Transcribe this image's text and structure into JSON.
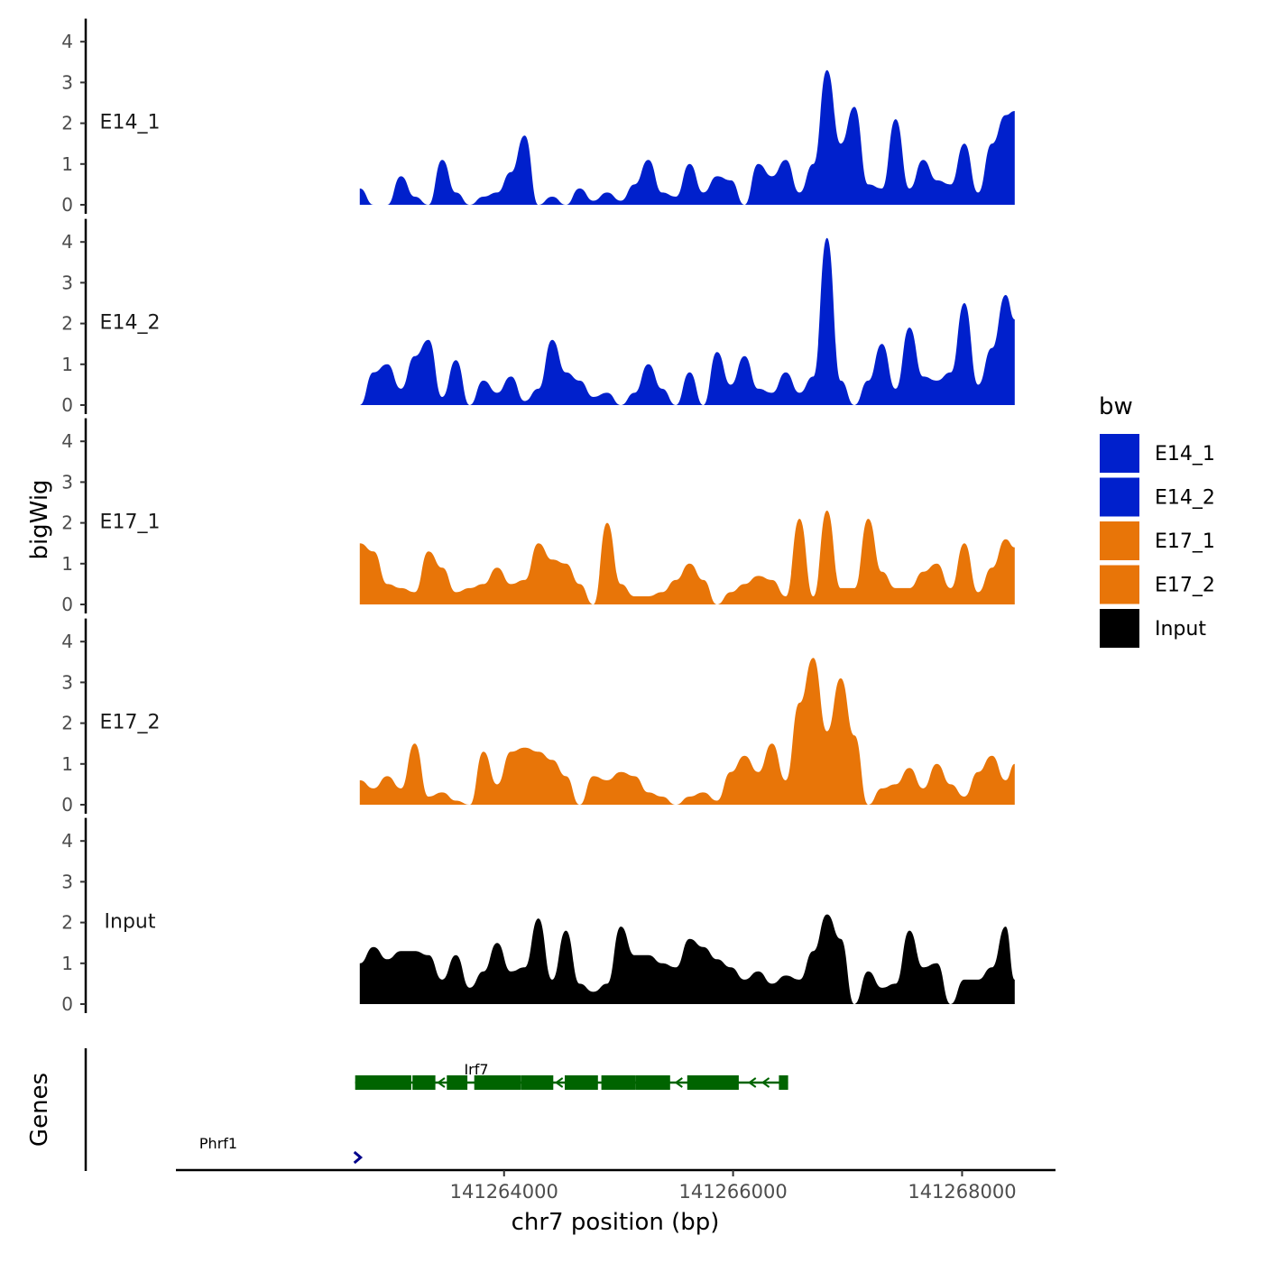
{
  "chart_data": {
    "type": "area",
    "title": "",
    "ylabel": "bigWig",
    "xlabel": "chr7 position (bp)",
    "genes_label": "Genes",
    "chromosome": "chr7",
    "xlim": [
      141261150,
      141268800
    ],
    "x_ticks": [
      141264000,
      141266000,
      141268000
    ],
    "x_tick_labels": [
      "141264000",
      "141266000",
      "141268000"
    ],
    "ylim": [
      0,
      4.3
    ],
    "y_ticks": [
      0,
      1,
      2,
      3,
      4
    ],
    "y_tick_labels": [
      "0",
      "1",
      "2",
      "3",
      "4"
    ],
    "legend": {
      "title": "bw",
      "position": "right",
      "entries": [
        {
          "label": "E14_1",
          "color": "#0020CC"
        },
        {
          "label": "E14_2",
          "color": "#0020CC"
        },
        {
          "label": "E17_1",
          "color": "#E87508"
        },
        {
          "label": "E17_2",
          "color": "#E87508"
        },
        {
          "label": "Input",
          "color": "#000000"
        }
      ]
    },
    "x": [
      141262740,
      141262860,
      141262980,
      141263100,
      141263220,
      141263340,
      141263460,
      141263580,
      141263700,
      141263820,
      141263940,
      141264060,
      141264180,
      141264300,
      141264420,
      141264540,
      141264660,
      141264780,
      141264900,
      141265020,
      141265140,
      141265260,
      141265380,
      141265500,
      141265620,
      141265740,
      141265860,
      141265980,
      141266100,
      141266220,
      141266340,
      141266460,
      141266580,
      141266700,
      141266820,
      141266940,
      141267060,
      141267180,
      141267300,
      141267420,
      141267540,
      141267660,
      141267780,
      141267900,
      141268020,
      141268140,
      141268260,
      141268380,
      141268460
    ],
    "series": [
      {
        "name": "E14_1",
        "color": "#0020CC",
        "values": [
          0.4,
          0,
          0,
          0.7,
          0.2,
          0,
          1.1,
          0.3,
          0,
          0.2,
          0.3,
          0.8,
          1.7,
          0,
          0.2,
          0,
          0.4,
          0.1,
          0.3,
          0.1,
          0.5,
          1.1,
          0.3,
          0.2,
          1.0,
          0.3,
          0.7,
          0.6,
          0,
          1.0,
          0.7,
          1.1,
          0.3,
          1.0,
          3.3,
          1.5,
          2.4,
          0.5,
          0.4,
          2.1,
          0.4,
          1.1,
          0.6,
          0.5,
          1.5,
          0.3,
          1.5,
          2.2,
          2.3
        ]
      },
      {
        "name": "E14_2",
        "color": "#0020CC",
        "values": [
          0,
          0.8,
          1.0,
          0.4,
          1.2,
          1.6,
          0.2,
          1.1,
          0,
          0.6,
          0.3,
          0.7,
          0.1,
          0.4,
          1.6,
          0.8,
          0.6,
          0.2,
          0.3,
          0,
          0.3,
          1.0,
          0.4,
          0,
          0.8,
          0,
          1.3,
          0.5,
          1.2,
          0.4,
          0.3,
          0.8,
          0.3,
          0.7,
          4.1,
          0.6,
          0,
          0.6,
          1.5,
          0.4,
          1.9,
          0.7,
          0.6,
          0.8,
          2.5,
          0.5,
          1.4,
          2.7,
          2.1
        ]
      },
      {
        "name": "E17_1",
        "color": "#E87508",
        "values": [
          1.5,
          1.3,
          0.5,
          0.4,
          0.3,
          1.3,
          0.9,
          0.3,
          0.4,
          0.5,
          0.9,
          0.5,
          0.6,
          1.5,
          1.1,
          1.0,
          0.5,
          0,
          2.0,
          0.5,
          0.2,
          0.2,
          0.3,
          0.6,
          1.0,
          0.6,
          0,
          0.3,
          0.5,
          0.7,
          0.6,
          0.2,
          2.1,
          0.2,
          2.3,
          0.4,
          0.4,
          2.1,
          0.8,
          0.4,
          0.4,
          0.8,
          1.0,
          0.4,
          1.5,
          0.3,
          0.9,
          1.6,
          1.4
        ]
      },
      {
        "name": "E17_2",
        "color": "#E87508",
        "values": [
          0.6,
          0.4,
          0.7,
          0.4,
          1.5,
          0.2,
          0.3,
          0.1,
          0,
          1.3,
          0.5,
          1.3,
          1.4,
          1.3,
          1.1,
          0.7,
          0,
          0.7,
          0.6,
          0.8,
          0.7,
          0.3,
          0.2,
          0,
          0.2,
          0.3,
          0.1,
          0.8,
          1.2,
          0.8,
          1.5,
          0.6,
          2.5,
          3.6,
          1.8,
          3.1,
          1.7,
          0,
          0.4,
          0.5,
          0.9,
          0.4,
          1.0,
          0.5,
          0.2,
          0.8,
          1.2,
          0.6,
          1.0
        ]
      },
      {
        "name": "Input",
        "color": "#000000",
        "values": [
          1.0,
          1.4,
          1.1,
          1.3,
          1.3,
          1.2,
          0.6,
          1.2,
          0.4,
          0.8,
          1.5,
          0.8,
          0.9,
          2.1,
          0.6,
          1.8,
          0.5,
          0.3,
          0.5,
          1.9,
          1.2,
          1.2,
          1.0,
          0.9,
          1.6,
          1.4,
          1.1,
          0.9,
          0.6,
          0.8,
          0.5,
          0.7,
          0.6,
          1.3,
          2.2,
          1.6,
          0,
          0.8,
          0.4,
          0.5,
          1.8,
          0.9,
          1.0,
          0,
          0.6,
          0.6,
          0.9,
          1.9,
          0.6
        ]
      }
    ],
    "genes": [
      {
        "name": "Irf7",
        "strand": "-",
        "color": "#006400",
        "start": 141262700,
        "end": 141266480,
        "exons": [
          [
            141262700,
            141263190
          ],
          [
            141263200,
            141263400
          ],
          [
            141263500,
            141263680
          ],
          [
            141263740,
            141264150
          ],
          [
            141264150,
            141264430
          ],
          [
            141264530,
            141264820
          ],
          [
            141264850,
            141265150
          ],
          [
            141265150,
            141265450
          ],
          [
            141265600,
            141266050
          ],
          [
            141266400,
            141266480
          ]
        ]
      },
      {
        "name": "Phrf1",
        "strand": "+",
        "color": "#00008B",
        "start": 141262700,
        "end": 141262780,
        "exons": []
      }
    ]
  }
}
